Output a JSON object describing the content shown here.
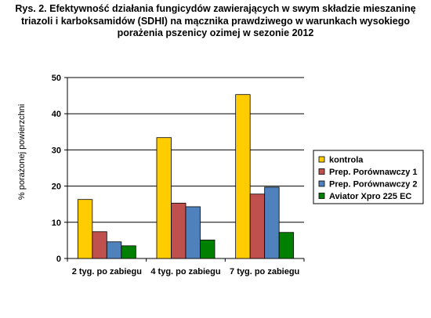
{
  "chart_data": {
    "type": "bar",
    "title": "Rys. 2. Efektywność działania fungicydów zawierających w swym składzie mieszaninę triazoli i karboksamidów (SDHI) na mącznika prawdziwego w warunkach wysokiego porażenia pszenicy ozimej w sezonie 2012",
    "ylabel": "% porażonej powierzchni",
    "xlabel": "",
    "categories": [
      "2 tyg. po zabiegu",
      "4 tyg. po zabiegu",
      "7 tyg. po zabiegu"
    ],
    "ylim": [
      0,
      50
    ],
    "yticks": [
      0,
      10,
      20,
      30,
      40,
      50
    ],
    "grid": true,
    "legend_position": "right",
    "series": [
      {
        "name": "kontrola",
        "color": "#FFCC00",
        "values": [
          16.3,
          33.4,
          45.3
        ]
      },
      {
        "name": "Prep. Porównawczy 1",
        "color": "#C0504D",
        "values": [
          7.4,
          15.3,
          17.8
        ]
      },
      {
        "name": "Prep. Porównawczy 2",
        "color": "#4F81BD",
        "values": [
          4.6,
          14.3,
          19.7
        ]
      },
      {
        "name": "Aviator Xpro 225 EC",
        "color": "#008000",
        "values": [
          3.5,
          5.1,
          7.2
        ]
      }
    ]
  }
}
